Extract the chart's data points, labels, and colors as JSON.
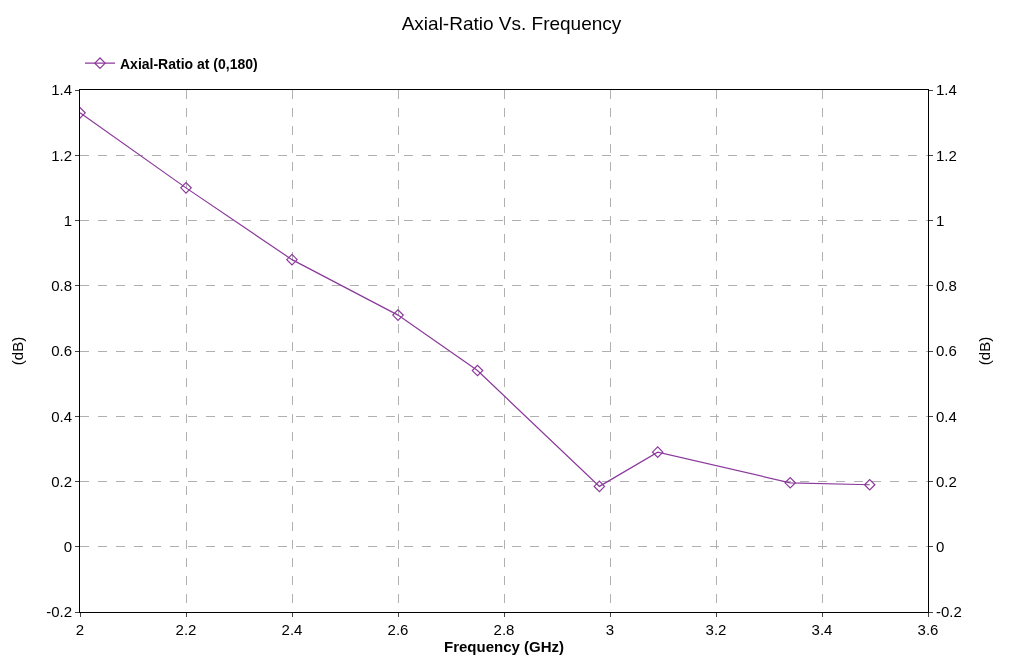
{
  "chart_data": {
    "type": "line",
    "title": "Axial-Ratio Vs. Frequency",
    "xlabel": "Frequency (GHz)",
    "ylabel": "(dB)",
    "y2label": "(dB)",
    "x": [
      2,
      2.2,
      2.4,
      2.6,
      2.75,
      2.98,
      3.09,
      3.34,
      3.49
    ],
    "series": [
      {
        "name": "Axial-Ratio at (0,180)",
        "color": "#8b3a9b",
        "values": [
          1.33,
          1.1,
          0.88,
          0.71,
          0.54,
          0.185,
          0.29,
          0.196,
          0.19
        ]
      }
    ],
    "xlim": [
      2,
      3.6
    ],
    "xticks": [
      2,
      2.2,
      2.4,
      2.6,
      2.8,
      3,
      3.2,
      3.4,
      3.6
    ],
    "ylim": [
      -0.2,
      1.4
    ],
    "yticks": [
      -0.2,
      0,
      0.2,
      0.4,
      0.6,
      0.8,
      1,
      1.2,
      1.4
    ],
    "y2lim": [
      -0.2,
      1.4
    ],
    "y2ticks": [
      -0.2,
      0,
      0.2,
      0.4,
      0.6,
      0.8,
      1,
      1.2,
      1.4
    ],
    "grid": true,
    "legend": "top left",
    "marker": "diamond",
    "line_style": "solid"
  }
}
